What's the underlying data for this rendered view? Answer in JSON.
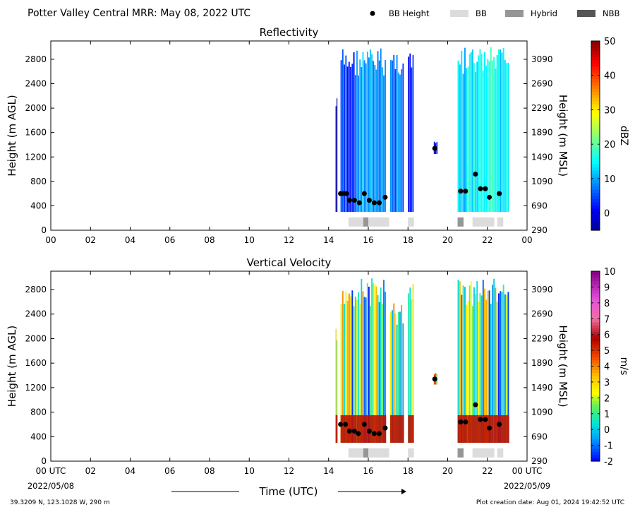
{
  "header": {
    "title": "Potter Valley Central MRR:  May 08, 2022 UTC"
  },
  "legend": {
    "items": [
      {
        "label": "BB Height",
        "kind": "marker",
        "color": "#000000"
      },
      {
        "label": "BB",
        "kind": "bar",
        "color": "#dcdcdc"
      },
      {
        "label": "Hybrid",
        "kind": "bar",
        "color": "#969696"
      },
      {
        "label": "NBB",
        "kind": "bar",
        "color": "#555555"
      }
    ]
  },
  "axes": {
    "x_ticks": [
      "00",
      "02",
      "04",
      "06",
      "08",
      "10",
      "12",
      "14",
      "16",
      "18",
      "20",
      "22",
      "00"
    ],
    "x_ticks_bottom": [
      "00 UTC",
      "02",
      "04",
      "06",
      "08",
      "10",
      "12",
      "14",
      "16",
      "18",
      "20",
      "22",
      "00 UTC"
    ],
    "start_date": "2022/05/08",
    "end_date": "2022/05/09",
    "xlabel": "Time (UTC)",
    "ylabel_left": "Height (m AGL)",
    "ylabel_right": "Height (m MSL)",
    "y_ticks_left": [
      0,
      400,
      800,
      1200,
      1600,
      2000,
      2400,
      2800
    ],
    "y_ticks_right": [
      "290",
      "690",
      "1090",
      "1490",
      "1890",
      "2290",
      "2690",
      "3090"
    ]
  },
  "footer": {
    "location": "39.3209 N, 123.1028 W, 290 m",
    "created": "Plot creation date: Aug 01, 2024 19:42:52 UTC"
  },
  "chart_data": [
    {
      "type": "heatmap",
      "title": "Reflectivity",
      "xlabel": "",
      "ylabel": "Height (m AGL)",
      "x_unit": "hours UTC",
      "xlim": [
        0,
        24
      ],
      "ylim": [
        0,
        3100
      ],
      "y2label": "Height (m MSL)",
      "colorbar": {
        "label": "dBZ",
        "range": [
          -5,
          50
        ],
        "ticks": [
          0,
          10,
          20,
          30,
          40,
          50
        ],
        "colormap": "jet"
      },
      "data_columns": [
        {
          "t0": 14.35,
          "t1": 14.45,
          "hmin": 300,
          "hmax": 2200,
          "value": -3
        },
        {
          "t0": 14.6,
          "t1": 15.4,
          "hmin": 300,
          "hmax": 3000,
          "value": 4
        },
        {
          "t0": 15.4,
          "t1": 16.0,
          "hmin": 300,
          "hmax": 3000,
          "value": 10
        },
        {
          "t0": 16.0,
          "t1": 16.9,
          "hmin": 300,
          "hmax": 3000,
          "value": 9
        },
        {
          "t0": 17.1,
          "t1": 17.8,
          "hmin": 300,
          "hmax": 3000,
          "value": 7
        },
        {
          "t0": 18.0,
          "t1": 18.3,
          "hmin": 300,
          "hmax": 3000,
          "value": 2
        },
        {
          "t0": 19.3,
          "t1": 19.5,
          "hmin": 1250,
          "hmax": 1450,
          "value": 0
        },
        {
          "t0": 20.5,
          "t1": 21.0,
          "hmin": 300,
          "hmax": 3000,
          "value": 12
        },
        {
          "t0": 21.0,
          "t1": 21.6,
          "hmin": 300,
          "hmax": 3000,
          "value": 15
        },
        {
          "t0": 21.6,
          "t1": 22.3,
          "hmin": 300,
          "hmax": 3000,
          "value": 17
        },
        {
          "t0": 22.3,
          "t1": 23.1,
          "hmin": 300,
          "hmax": 3000,
          "value": 14
        }
      ],
      "bb_height": {
        "t": [
          14.6,
          14.75,
          14.9,
          15.05,
          15.3,
          15.55,
          15.8,
          16.05,
          16.3,
          16.55,
          16.85,
          19.35,
          20.65,
          20.9,
          21.4,
          21.65,
          21.9,
          22.1,
          22.6
        ],
        "h": [
          600,
          600,
          600,
          490,
          490,
          450,
          600,
          490,
          450,
          450,
          540,
          1340,
          640,
          640,
          920,
          680,
          680,
          540,
          600
        ]
      },
      "bb_bars": [
        {
          "t0": 15.0,
          "t1": 17.05,
          "kind": "BB"
        },
        {
          "t0": 15.75,
          "t1": 16.0,
          "kind": "Hybrid"
        },
        {
          "t0": 18.0,
          "t1": 18.3,
          "kind": "BB"
        },
        {
          "t0": 20.5,
          "t1": 20.8,
          "kind": "Hybrid"
        },
        {
          "t0": 21.25,
          "t1": 22.35,
          "kind": "BB"
        },
        {
          "t0": 22.5,
          "t1": 22.8,
          "kind": "BB"
        }
      ]
    },
    {
      "type": "heatmap",
      "title": "Vertical Velocity",
      "xlabel": "Time (UTC)",
      "ylabel": "Height (m AGL)",
      "x_unit": "hours UTC",
      "xlim": [
        0,
        24
      ],
      "ylim": [
        0,
        3100
      ],
      "y2label": "Height (m MSL)",
      "colorbar": {
        "label": "m/s",
        "range": [
          -2,
          10
        ],
        "ticks": [
          -2,
          -1,
          0,
          1,
          2,
          3,
          4,
          5,
          6,
          7,
          8,
          9,
          10
        ],
        "colormap": "velocity"
      },
      "data_columns": [
        {
          "t0": 14.35,
          "t1": 14.45,
          "hmin": 300,
          "hmax": 2200,
          "value": 1
        },
        {
          "t0": 14.6,
          "t1": 15.4,
          "hmin": 300,
          "hmax": 3000,
          "value": 1
        },
        {
          "t0": 15.4,
          "t1": 16.0,
          "hmin": 300,
          "hmax": 3000,
          "value": 1
        },
        {
          "t0": 16.0,
          "t1": 16.9,
          "hmin": 300,
          "hmax": 3000,
          "value": 1
        },
        {
          "t0": 17.1,
          "t1": 17.8,
          "hmin": 300,
          "hmax": 2600,
          "value": 2.5
        },
        {
          "t0": 18.0,
          "t1": 18.3,
          "hmin": 300,
          "hmax": 3000,
          "value": 2
        },
        {
          "t0": 19.3,
          "t1": 19.5,
          "hmin": 1250,
          "hmax": 1450,
          "value": 2
        },
        {
          "t0": 20.5,
          "t1": 21.0,
          "hmin": 300,
          "hmax": 3000,
          "value": 2
        },
        {
          "t0": 21.0,
          "t1": 21.6,
          "hmin": 300,
          "hmax": 3000,
          "value": 1
        },
        {
          "t0": 21.6,
          "t1": 22.3,
          "hmin": 300,
          "hmax": 3000,
          "value": 1
        },
        {
          "t0": 22.3,
          "t1": 23.1,
          "hmin": 300,
          "hmax": 3000,
          "value": 1
        }
      ],
      "low_level_velocity": 5.5,
      "bb_height": {
        "t": [
          14.6,
          14.85,
          15.05,
          15.3,
          15.5,
          15.8,
          16.05,
          16.3,
          16.55,
          16.85,
          19.35,
          20.65,
          20.9,
          21.4,
          21.65,
          21.9,
          22.1,
          22.6
        ],
        "h": [
          600,
          600,
          490,
          490,
          450,
          600,
          490,
          450,
          450,
          540,
          1340,
          640,
          640,
          920,
          680,
          680,
          540,
          600
        ]
      },
      "bb_bars": [
        {
          "t0": 15.0,
          "t1": 17.05,
          "kind": "BB"
        },
        {
          "t0": 15.75,
          "t1": 16.0,
          "kind": "Hybrid"
        },
        {
          "t0": 18.0,
          "t1": 18.3,
          "kind": "BB"
        },
        {
          "t0": 20.5,
          "t1": 20.8,
          "kind": "Hybrid"
        },
        {
          "t0": 21.25,
          "t1": 22.35,
          "kind": "BB"
        },
        {
          "t0": 22.5,
          "t1": 22.8,
          "kind": "BB"
        }
      ]
    }
  ]
}
